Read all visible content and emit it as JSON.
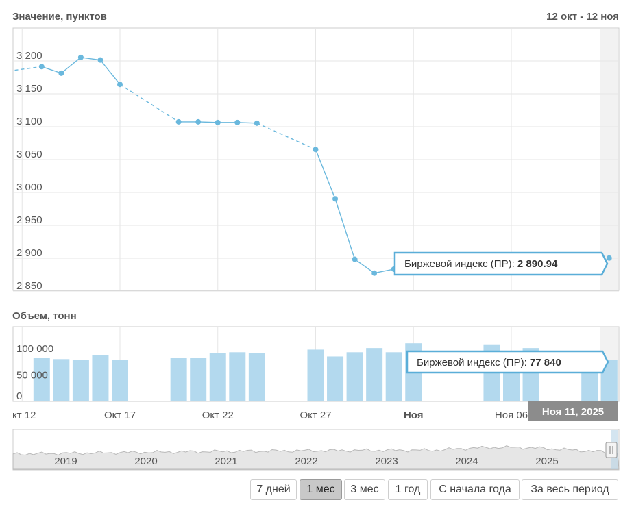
{
  "header": {
    "value_title": "Значение, пунктов",
    "date_range": "12 окт - 12 ноя",
    "volume_title": "Объем, тонн"
  },
  "colors": {
    "line": "#6ab8dd",
    "bar": "#b3d9ee",
    "tooltip_border": "#5aaed8",
    "grid": "#e6e6e6",
    "date_label_bg": "#8c8c8c"
  },
  "tooltips": {
    "price": {
      "label": "Биржевой индекс (ПР): ",
      "value": "2 890.94"
    },
    "volume": {
      "label": "Биржевой индекс (ПР): ",
      "value": "77 840"
    }
  },
  "hover_date": "Ноя 11, 2025",
  "x_axis": {
    "ticks": [
      {
        "day": 12,
        "label": "кт 12",
        "bold": false
      },
      {
        "day": 17,
        "label": "Окт 17",
        "bold": false
      },
      {
        "day": 22,
        "label": "Окт 22",
        "bold": false
      },
      {
        "day": 27,
        "label": "Окт 27",
        "bold": false
      },
      {
        "day": 32,
        "label": "Ноя",
        "bold": true
      },
      {
        "day": 37,
        "label": "Ноя 06",
        "bold": false
      }
    ]
  },
  "navigator": {
    "years": [
      "2019",
      "2020",
      "2021",
      "2022",
      "2023",
      "2024",
      "2025"
    ]
  },
  "range_buttons": [
    {
      "label": "7 дней",
      "active": false
    },
    {
      "label": "1 мес",
      "active": true
    },
    {
      "label": "3 мес",
      "active": false
    },
    {
      "label": "1 год",
      "active": false
    },
    {
      "label": "С начала года",
      "active": false
    },
    {
      "label": "За весь период",
      "active": false
    }
  ],
  "chart_data": [
    {
      "type": "line",
      "title": "Значение, пунктов",
      "ylim": [
        2840,
        3230
      ],
      "yticks": [
        2850,
        2900,
        2950,
        3000,
        3050,
        3100,
        3150,
        3200
      ],
      "ytick_labels": [
        "2 850",
        "2 900",
        "2 950",
        "3 000",
        "3 050",
        "3 100",
        "3 150",
        "3 200"
      ],
      "grid": true,
      "series": [
        {
          "name": "Биржевой индекс (ПР)",
          "points": [
            {
              "day": 11,
              "y": 3174
            },
            {
              "day": 13,
              "y": 3182
            },
            {
              "day": 14,
              "y": 3172
            },
            {
              "day": 15,
              "y": 3196
            },
            {
              "day": 16,
              "y": 3192
            },
            {
              "day": 17,
              "y": 3155
            },
            {
              "day": 20,
              "y": 3098
            },
            {
              "day": 21,
              "y": 3098
            },
            {
              "day": 22,
              "y": 3097
            },
            {
              "day": 23,
              "y": 3097
            },
            {
              "day": 24,
              "y": 3096
            },
            {
              "day": 27,
              "y": 3056
            },
            {
              "day": 28,
              "y": 2981
            },
            {
              "day": 29,
              "y": 2889
            },
            {
              "day": 30,
              "y": 2868
            },
            {
              "day": 31,
              "y": 2874
            },
            {
              "day": 32,
              "y": 2872
            },
            {
              "day": 36,
              "y": 2871
            },
            {
              "day": 37,
              "y": 2869
            },
            {
              "day": 38,
              "y": 2874
            },
            {
              "day": 41,
              "y": 2873
            },
            {
              "day": 42,
              "y": 2890.94
            }
          ]
        }
      ]
    },
    {
      "type": "bar",
      "title": "Объем, тонн",
      "ylim": [
        0,
        120000
      ],
      "yticks": [
        0,
        50000,
        100000
      ],
      "ytick_labels": [
        "0",
        "50 000",
        "100 000"
      ],
      "series": [
        {
          "name": "Биржевой индекс (ПР)",
          "points": [
            {
              "day": 13,
              "y": 82000
            },
            {
              "day": 14,
              "y": 80000
            },
            {
              "day": 15,
              "y": 78000
            },
            {
              "day": 16,
              "y": 87000
            },
            {
              "day": 17,
              "y": 78000
            },
            {
              "day": 20,
              "y": 82000
            },
            {
              "day": 21,
              "y": 82000
            },
            {
              "day": 22,
              "y": 91000
            },
            {
              "day": 23,
              "y": 93000
            },
            {
              "day": 24,
              "y": 91000
            },
            {
              "day": 27,
              "y": 98000
            },
            {
              "day": 28,
              "y": 85000
            },
            {
              "day": 29,
              "y": 93000
            },
            {
              "day": 30,
              "y": 101000
            },
            {
              "day": 31,
              "y": 93000
            },
            {
              "day": 32,
              "y": 110000
            },
            {
              "day": 36,
              "y": 108000
            },
            {
              "day": 37,
              "y": 80000
            },
            {
              "day": 38,
              "y": 101000
            },
            {
              "day": 41,
              "y": 75000
            },
            {
              "day": 42,
              "y": 77840
            }
          ]
        }
      ]
    }
  ]
}
